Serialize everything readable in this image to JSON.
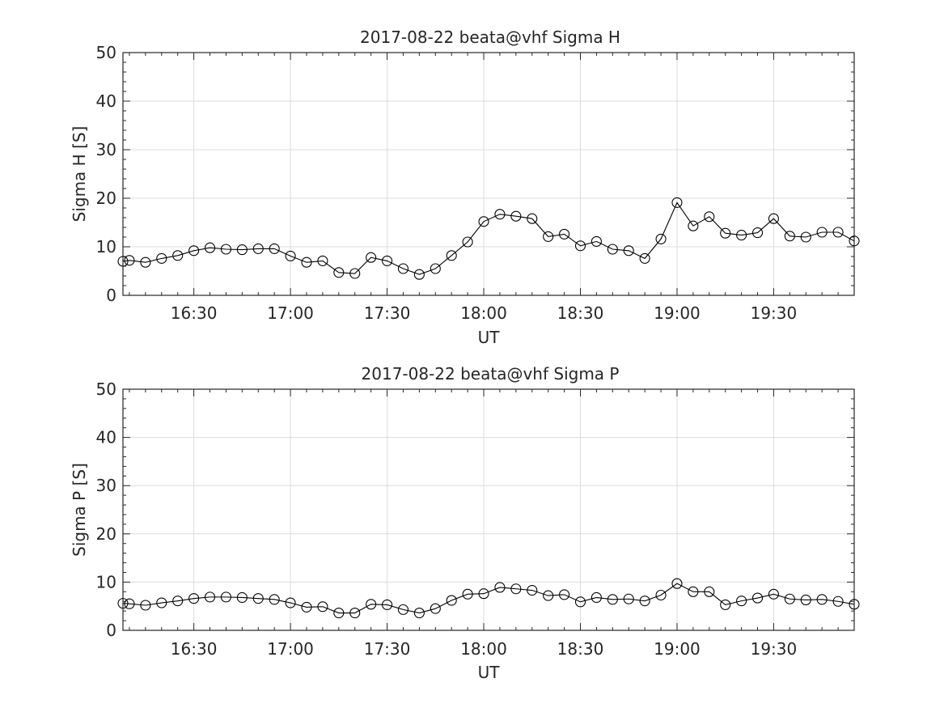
{
  "chart_data": [
    {
      "type": "line",
      "title": "2017-08-22  beata@vhf Sigma H",
      "xlabel": "UT",
      "ylabel": "Sigma H [S]",
      "ylim": [
        0,
        50
      ],
      "yticks": [
        "0",
        "10",
        "20",
        "30",
        "40",
        "50"
      ],
      "xlim": [
        "16:08",
        "19:55"
      ],
      "xticks": [
        "16:30",
        "17:00",
        "17:30",
        "18:00",
        "18:30",
        "19:00",
        "19:30"
      ],
      "grid": true,
      "marker": "open-circle",
      "x": [
        "16:08",
        "16:10",
        "16:15",
        "16:20",
        "16:25",
        "16:30",
        "16:35",
        "16:40",
        "16:45",
        "16:50",
        "16:55",
        "17:00",
        "17:05",
        "17:10",
        "17:15",
        "17:20",
        "17:25",
        "17:30",
        "17:35",
        "17:40",
        "17:45",
        "17:50",
        "17:55",
        "18:00",
        "18:05",
        "18:10",
        "18:15",
        "18:20",
        "18:25",
        "18:30",
        "18:35",
        "18:40",
        "18:45",
        "18:50",
        "18:55",
        "19:00",
        "19:05",
        "19:10",
        "19:15",
        "19:20",
        "19:25",
        "19:30",
        "19:35",
        "19:40",
        "19:45",
        "19:50",
        "19:55"
      ],
      "values": [
        7.0,
        7.2,
        6.8,
        7.6,
        8.2,
        9.2,
        9.8,
        9.5,
        9.4,
        9.6,
        9.6,
        8.1,
        6.8,
        7.1,
        4.7,
        4.5,
        7.8,
        7.1,
        5.5,
        4.3,
        5.5,
        8.2,
        11.0,
        15.2,
        16.7,
        16.3,
        15.8,
        12.1,
        12.6,
        10.2,
        11.1,
        9.5,
        9.2,
        7.6,
        11.6,
        19.1,
        14.3,
        16.2,
        12.8,
        12.4,
        12.9,
        15.8,
        12.2,
        12.0,
        13.0,
        13.0,
        11.2
      ]
    },
    {
      "type": "line",
      "title": "2017-08-22  beata@vhf Sigma P",
      "xlabel": "UT",
      "ylabel": "Sigma P [S]",
      "ylim": [
        0,
        50
      ],
      "yticks": [
        "0",
        "10",
        "20",
        "30",
        "40",
        "50"
      ],
      "xlim": [
        "16:08",
        "19:55"
      ],
      "xticks": [
        "16:30",
        "17:00",
        "17:30",
        "18:00",
        "18:30",
        "19:00",
        "19:30"
      ],
      "grid": true,
      "marker": "open-circle",
      "x": [
        "16:08",
        "16:10",
        "16:15",
        "16:20",
        "16:25",
        "16:30",
        "16:35",
        "16:40",
        "16:45",
        "16:50",
        "16:55",
        "17:00",
        "17:05",
        "17:10",
        "17:15",
        "17:20",
        "17:25",
        "17:30",
        "17:35",
        "17:40",
        "17:45",
        "17:50",
        "17:55",
        "18:00",
        "18:05",
        "18:10",
        "18:15",
        "18:20",
        "18:25",
        "18:30",
        "18:35",
        "18:40",
        "18:45",
        "18:50",
        "18:55",
        "19:00",
        "19:05",
        "19:10",
        "19:15",
        "19:20",
        "19:25",
        "19:30",
        "19:35",
        "19:40",
        "19:45",
        "19:50",
        "19:55"
      ],
      "values": [
        5.6,
        5.5,
        5.2,
        5.7,
        6.1,
        6.6,
        6.9,
        6.9,
        6.8,
        6.6,
        6.4,
        5.7,
        4.8,
        4.9,
        3.6,
        3.6,
        5.4,
        5.3,
        4.3,
        3.6,
        4.5,
        6.2,
        7.5,
        7.6,
        8.9,
        8.6,
        8.3,
        7.2,
        7.4,
        5.9,
        6.8,
        6.4,
        6.5,
        6.1,
        7.3,
        9.7,
        8.0,
        8.0,
        5.3,
        6.1,
        6.7,
        7.5,
        6.5,
        6.3,
        6.4,
        6.0,
        5.4
      ]
    }
  ]
}
